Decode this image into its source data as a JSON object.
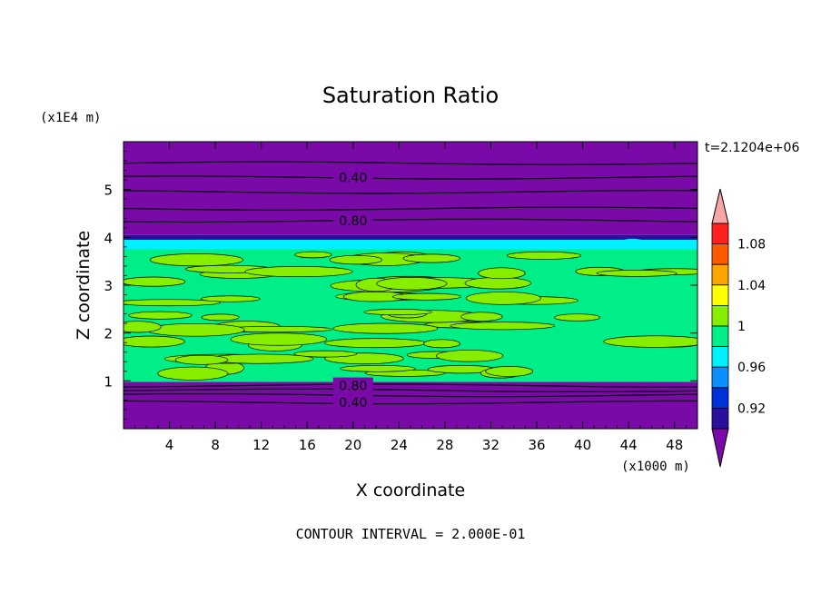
{
  "chart_data": {
    "type": "heatmap",
    "title": "Saturation Ratio",
    "xlabel": "X coordinate",
    "ylabel": "Z coordinate",
    "x_unit": "(x1000 m)",
    "y_unit": "(x1E4 m)",
    "time_label": "t=2.1204e+06",
    "footer": "CONTOUR INTERVAL = 2.000E-01",
    "xlim": [
      0,
      50
    ],
    "ylim": [
      0,
      6
    ],
    "xticks": [
      "4",
      "8",
      "12",
      "16",
      "20",
      "24",
      "28",
      "32",
      "36",
      "40",
      "44",
      "48"
    ],
    "yticks": [
      "1",
      "2",
      "3",
      "4",
      "5"
    ],
    "colorbar": {
      "levels": [
        0.9,
        0.92,
        0.94,
        0.96,
        0.98,
        1.0,
        1.02,
        1.04,
        1.06,
        1.08,
        1.1
      ],
      "labels": [
        "0.92",
        "0.96",
        "1",
        "1.04",
        "1.08"
      ],
      "colors": [
        "#7a0aa8",
        "#2a0f9e",
        "#0030d8",
        "#0b8fff",
        "#00f0ff",
        "#00ee88",
        "#88ee00",
        "#ffff00",
        "#ffa500",
        "#ff5a00",
        "#ff1f1f",
        "#f7a5a5"
      ],
      "under_color": "#7a0aa8",
      "over_color": "#f7a5a5"
    },
    "contour_labels": [
      {
        "x": 20,
        "y": 5.25,
        "text": "0.40"
      },
      {
        "x": 20,
        "y": 4.35,
        "text": "0.80"
      },
      {
        "x": 20,
        "y": 0.9,
        "text": "0.80"
      },
      {
        "x": 20,
        "y": 0.55,
        "text": "0.40"
      }
    ],
    "bands": [
      {
        "y0": 0.0,
        "y1": 0.98,
        "value": "below 0.90",
        "color": "#7a0aa8"
      },
      {
        "y0": 0.98,
        "y1": 3.75,
        "value": "0.98 to 1.02",
        "color": "#00ee88"
      },
      {
        "y0": 3.75,
        "y1": 3.95,
        "value": "0.94 to 0.98",
        "color": "#00f0ff"
      },
      {
        "y0": 3.95,
        "y1": 4.05,
        "value": "0.90 to 0.94",
        "color": "#2a0f9e"
      },
      {
        "y0": 4.05,
        "y1": 6.0,
        "value": "below 0.90",
        "color": "#7a0aa8"
      }
    ]
  }
}
